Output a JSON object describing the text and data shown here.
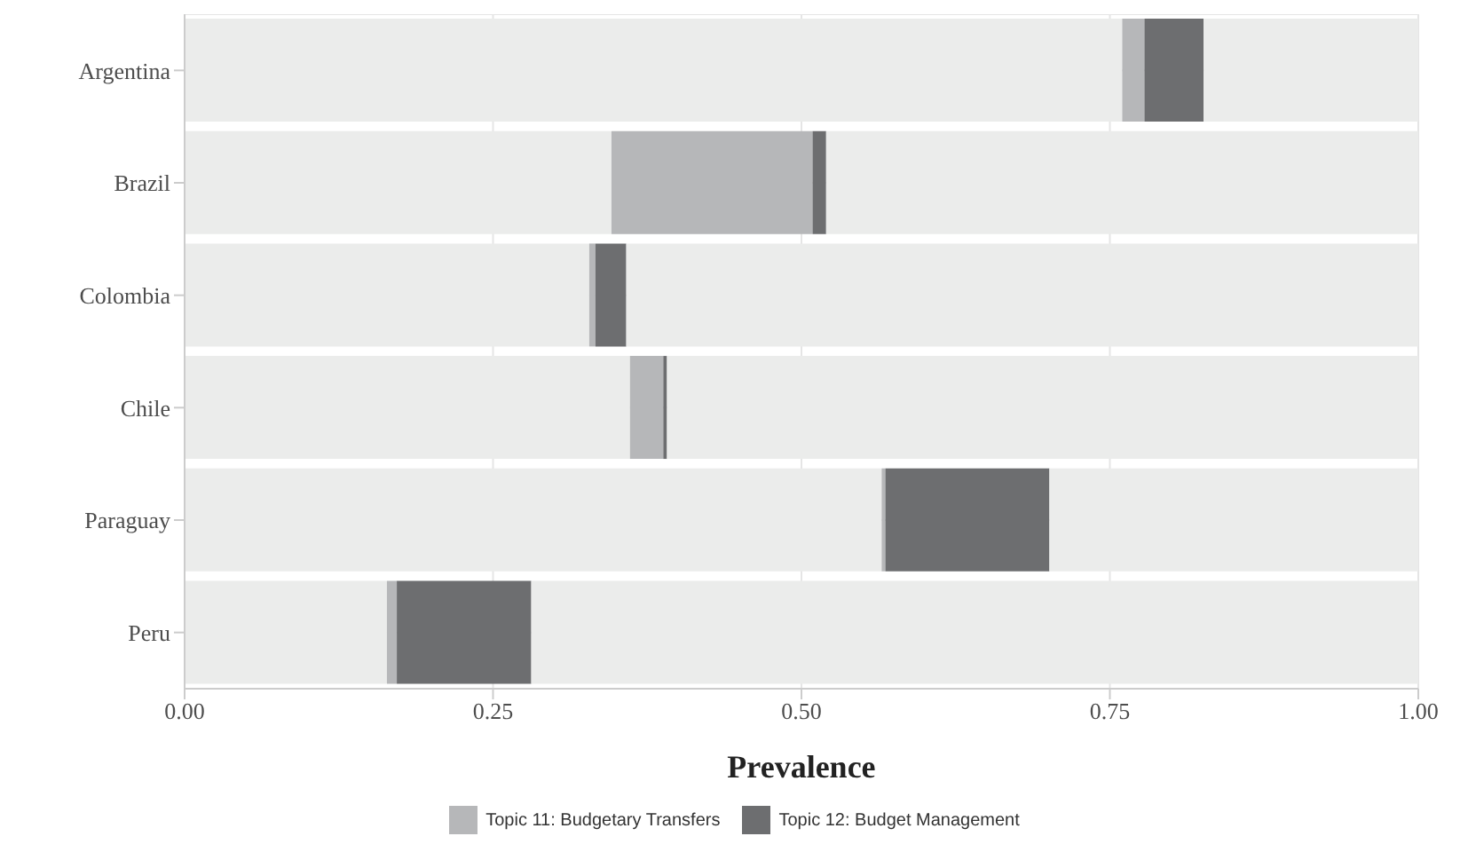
{
  "chart_data": {
    "type": "bar",
    "orientation": "horizontal",
    "stacked": true,
    "xlabel": "Prevalence",
    "categories": [
      "Argentina",
      "Brazil",
      "Colombia",
      "Chile",
      "Paraguay",
      "Peru"
    ],
    "series": [
      {
        "color": "#ebeceb",
        "values": [
          0.76,
          0.346,
          0.328,
          0.361,
          0.565,
          0.164
        ]
      },
      {
        "name": "Topic 11: Budgetary Transfers",
        "color": "#b6b7b9",
        "values": [
          0.018,
          0.163,
          0.005,
          0.027,
          0.003,
          0.008
        ]
      },
      {
        "name": "Topic 12: Budget Management",
        "color": "#6d6e70",
        "values": [
          0.048,
          0.011,
          0.025,
          0.003,
          0.133,
          0.109
        ]
      },
      {
        "color": "#ebeceb",
        "values": [
          0.174,
          0.48,
          0.642,
          0.609,
          0.299,
          0.719
        ]
      }
    ],
    "xlim": [
      0,
      1
    ],
    "xticks": [
      {
        "value": 0,
        "label": "0.00"
      },
      {
        "value": 0.25,
        "label": "0.25"
      },
      {
        "value": 0.5,
        "label": "0.50"
      },
      {
        "value": 0.75,
        "label": "0.75"
      },
      {
        "value": 1,
        "label": "1.00"
      }
    ],
    "grid": true,
    "legend": "bottom"
  }
}
